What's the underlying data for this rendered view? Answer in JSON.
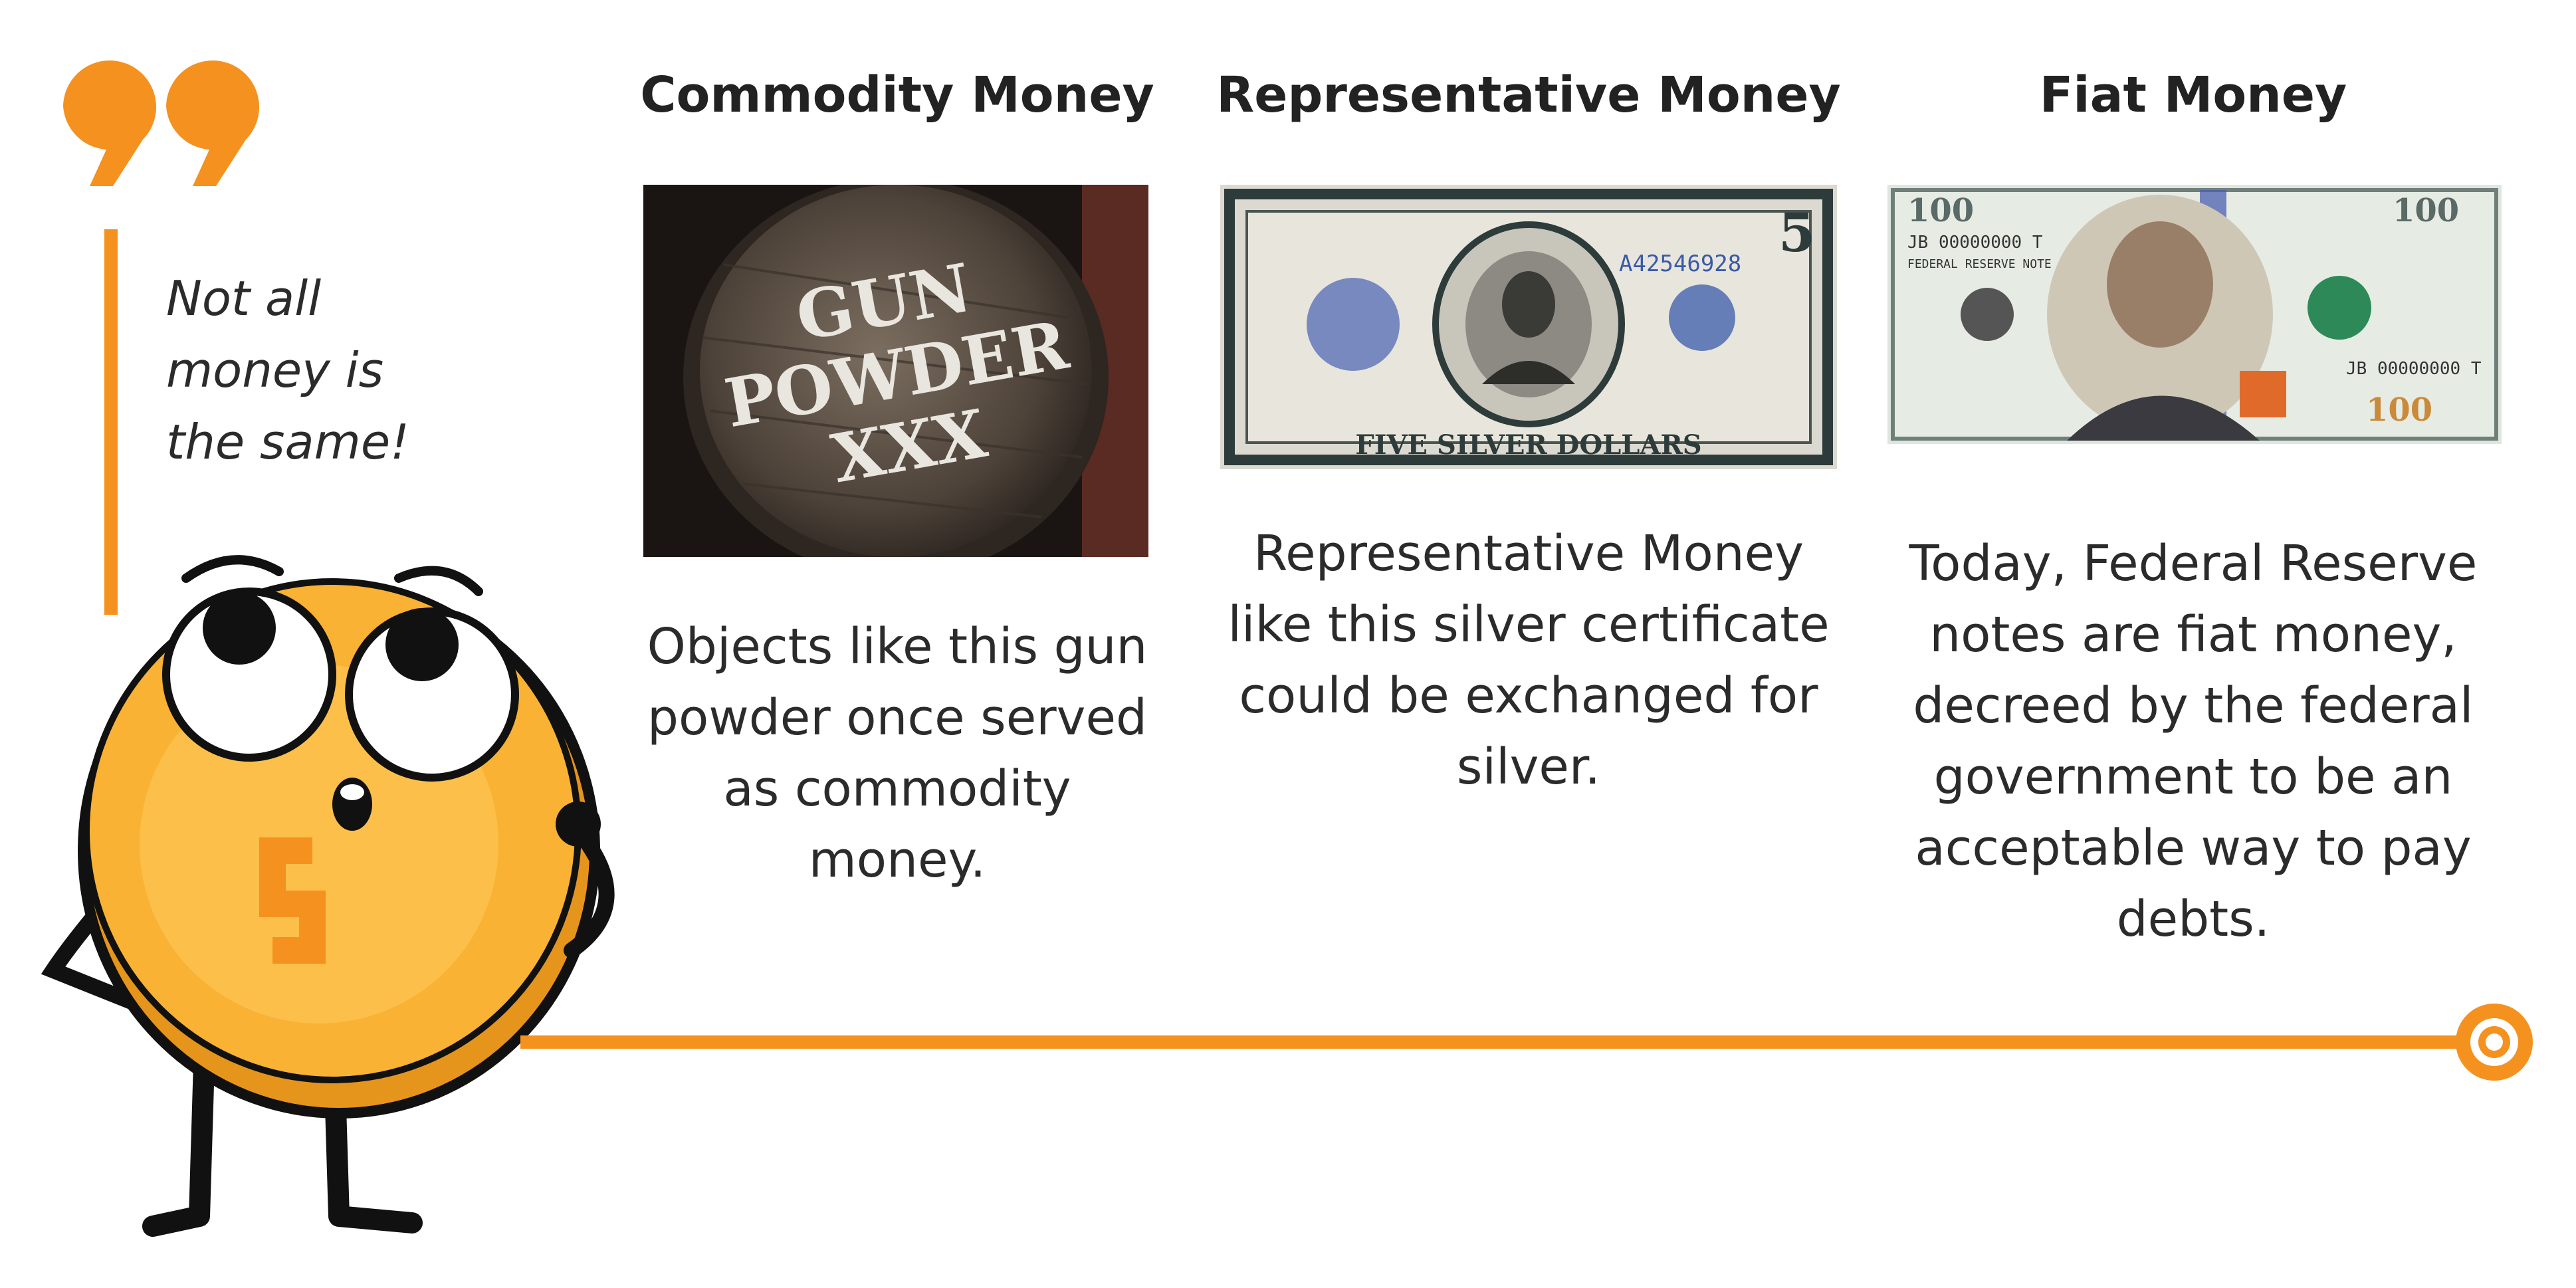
{
  "sidebar": {
    "tagline": "Not all money is the same!",
    "quote_icon": "quote-marks-icon",
    "character": "coin-mascot"
  },
  "columns": [
    {
      "title": "Commodity Money",
      "image": "gun-powder-barrel",
      "image_text": [
        "GUN",
        "POWDER",
        "XXX"
      ],
      "description": "Objects like this gun powder once served as commodity money."
    },
    {
      "title": "Representative Money",
      "image": "silver-certificate-five-dollars",
      "image_text": [
        "FIVE SILVER DOLLARS",
        "A42546928",
        "5"
      ],
      "description": "Representative Money like this silver certificate could be exchanged for silver."
    },
    {
      "title": "Fiat Money",
      "image": "hundred-dollar-bill",
      "image_text": [
        "100",
        "JB 00000000 T",
        "FEDERAL RESERVE NOTE"
      ],
      "description": "Today, Federal Reserve notes are fiat money, decreed by the federal government to be an acceptable way to pay debts."
    }
  ],
  "colors": {
    "accent": "#f5911e",
    "coin": "#f9b233",
    "text": "#222222"
  }
}
